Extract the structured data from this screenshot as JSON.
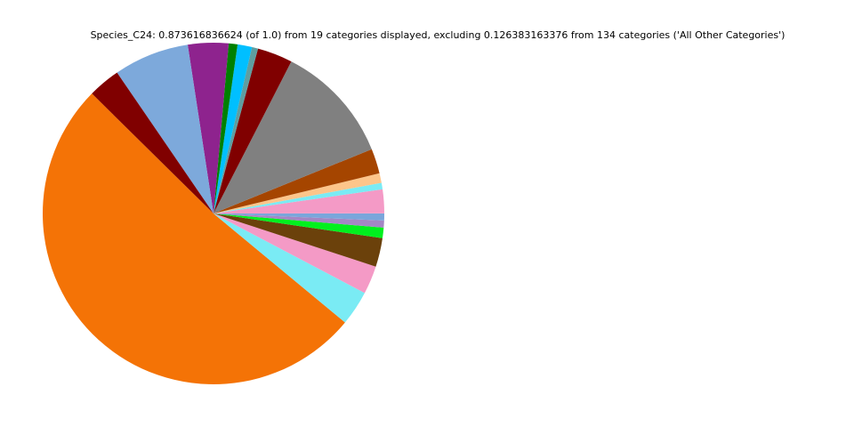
{
  "chart_data": {
    "type": "pie",
    "title": "Species_C24: 0.873616836624 (of 1.0) from 19 categories displayed, excluding 0.126383163376 from 134 categories ('All Other Categories')",
    "start_angle_deg": 135.4,
    "direction": "counterclockwise",
    "legend": "none",
    "slices": [
      {
        "value": 0.449,
        "color": "#f47306"
      },
      {
        "value": 0.0289,
        "color": "#7aebf4"
      },
      {
        "value": 0.0233,
        "color": "#f49ac6"
      },
      {
        "value": 0.0238,
        "color": "#6b410b"
      },
      {
        "value": 0.0087,
        "color": "#00f01e"
      },
      {
        "value": 0.0058,
        "color": "#a487c4"
      },
      {
        "value": 0.0058,
        "color": "#7aa6db"
      },
      {
        "value": 0.0197,
        "color": "#f49ac6"
      },
      {
        "value": 0.0053,
        "color": "#7aebf4"
      },
      {
        "value": 0.008,
        "color": "#fdc58a"
      },
      {
        "value": 0.0206,
        "color": "#a54500"
      },
      {
        "value": 0.099,
        "color": "#808080"
      },
      {
        "value": 0.0291,
        "color": "#800000"
      },
      {
        "value": 0.0051,
        "color": "#5f9ea0"
      },
      {
        "value": 0.0119,
        "color": "#00bfff"
      },
      {
        "value": 0.0073,
        "color": "#008000"
      },
      {
        "value": 0.0335,
        "color": "#8e238e"
      },
      {
        "value": 0.0624,
        "color": "#7da9db"
      },
      {
        "value": 0.0267,
        "color": "#800000"
      }
    ]
  }
}
